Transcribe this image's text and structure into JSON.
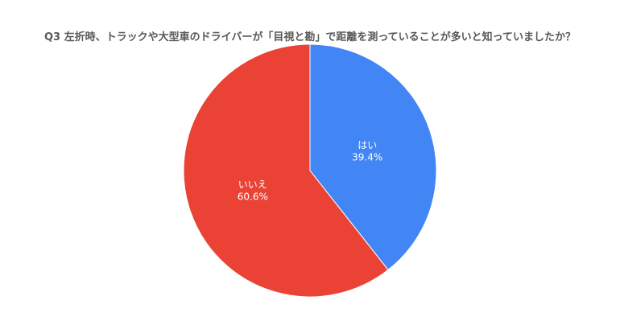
{
  "chart_data": {
    "type": "pie",
    "title": "Q3 左折時、トラックや大型車のドライバーが「目視と勘」で距離を測っていることが多いと知っていましたか？",
    "slices": [
      {
        "label": "はい",
        "value": 39.4,
        "value_label": "39.4%",
        "color": "#4285f4"
      },
      {
        "label": "いいえ",
        "value": 60.6,
        "value_label": "60.6%",
        "color": "#ea4335"
      }
    ],
    "start": "12 o'clock",
    "direction": "clockwise",
    "legend": "none"
  }
}
